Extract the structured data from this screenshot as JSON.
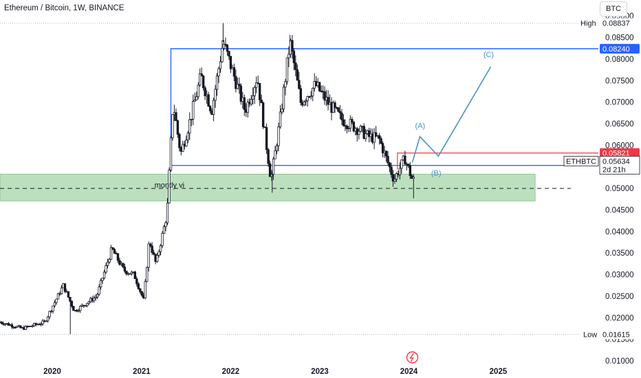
{
  "header": {
    "title": "Ethereum / Bitcoin, 1W, BINANCE",
    "currency": "BTC"
  },
  "price_axis": {
    "high_label": "High",
    "high_value": "0.08837",
    "low_label": "Low",
    "low_value": "0.01615",
    "symbol": "ETHBTC",
    "last_price": "0.05634",
    "countdown": "2d 21h",
    "level_upper": "0.08240",
    "level_red": "0.05821",
    "level_lower": "0.05533"
  },
  "annotations": {
    "zone_label": "montly vi",
    "wave_a": "(A)",
    "wave_b": "(B)",
    "wave_c": "(C)"
  },
  "colors": {
    "up": "#131722",
    "down": "#131722",
    "blue": "#2962ff",
    "red": "#f23645",
    "zone": "#a5d6a7",
    "wave": "#4a90c8",
    "grid": "#e0e3eb"
  },
  "chart_data": {
    "type": "candlestick",
    "ylim": [
      0.0092,
      0.0937
    ],
    "xlim": [
      "2019-06-01",
      "2026-02-15"
    ],
    "y_ticks": [
      "0.01000",
      "0.01500",
      "0.02000",
      "0.02500",
      "0.03000",
      "0.03500",
      "0.04000",
      "0.04500",
      "0.05000",
      "0.05500",
      "0.06000",
      "0.06500",
      "0.07000",
      "0.07500",
      "0.08000",
      "0.08500",
      "0.09000"
    ],
    "x_ticks": [
      "2020",
      "2021",
      "2022",
      "2023",
      "2024",
      "2025"
    ],
    "path": [
      [
        "2019-06-01",
        0.019
      ],
      [
        "2019-09-01",
        0.0175
      ],
      [
        "2019-12-01",
        0.019
      ],
      [
        "2020-02-15",
        0.0275
      ],
      [
        "2020-04-01",
        0.0215
      ],
      [
        "2020-07-01",
        0.025
      ],
      [
        "2020-09-01",
        0.036
      ],
      [
        "2020-10-20",
        0.031
      ],
      [
        "2020-12-01",
        0.03
      ],
      [
        "2021-01-10",
        0.024
      ],
      [
        "2021-02-01",
        0.038
      ],
      [
        "2021-03-01",
        0.0325
      ],
      [
        "2021-04-15",
        0.044
      ],
      [
        "2021-05-10",
        0.07
      ],
      [
        "2021-06-10",
        0.058
      ],
      [
        "2021-07-15",
        0.065
      ],
      [
        "2021-09-01",
        0.076
      ],
      [
        "2021-10-15",
        0.068
      ],
      [
        "2021-12-01",
        0.084
      ],
      [
        "2022-01-15",
        0.076
      ],
      [
        "2022-03-01",
        0.068
      ],
      [
        "2022-04-20",
        0.076
      ],
      [
        "2022-06-15",
        0.052
      ],
      [
        "2022-07-20",
        0.065
      ],
      [
        "2022-09-01",
        0.084
      ],
      [
        "2022-10-15",
        0.07
      ],
      [
        "2022-12-15",
        0.074
      ],
      [
        "2023-02-01",
        0.07
      ],
      [
        "2023-04-01",
        0.066
      ],
      [
        "2023-06-01",
        0.064
      ],
      [
        "2023-07-20",
        0.062
      ],
      [
        "2023-09-01",
        0.0615
      ],
      [
        "2023-11-01",
        0.052
      ],
      [
        "2023-12-15",
        0.057
      ],
      [
        "2024-01-15",
        0.052
      ]
    ],
    "wicks": [
      {
        "date": "2021-12-01",
        "high": 0.08837
      },
      {
        "date": "2022-09-01",
        "high": 0.0856
      },
      {
        "date": "2022-06-20",
        "low": 0.049
      },
      {
        "date": "2024-01-20",
        "low": 0.0477
      },
      {
        "date": "2020-03-15",
        "low": 0.01615
      }
    ],
    "lines": {
      "upper_box": {
        "from": "2021-05-01",
        "to": "2026-02-15",
        "value": 0.0824
      },
      "lower_box": {
        "from": "2021-05-01",
        "to": "2026-02-15",
        "value": 0.05533
      },
      "red_level": {
        "from": "2023-11-15",
        "to": "2026-02-15",
        "value": 0.05821
      },
      "zone": {
        "from": "2019-06-01",
        "to": "2025-06-01",
        "top": 0.0533,
        "bottom": 0.0471
      },
      "dashed": 0.05
    },
    "wave": [
      [
        "2024-01-15",
        0.056
      ],
      [
        "2024-02-15",
        0.062
      ],
      [
        "2024-05-01",
        0.0575
      ],
      [
        "2024-12-01",
        0.0782
      ]
    ]
  }
}
